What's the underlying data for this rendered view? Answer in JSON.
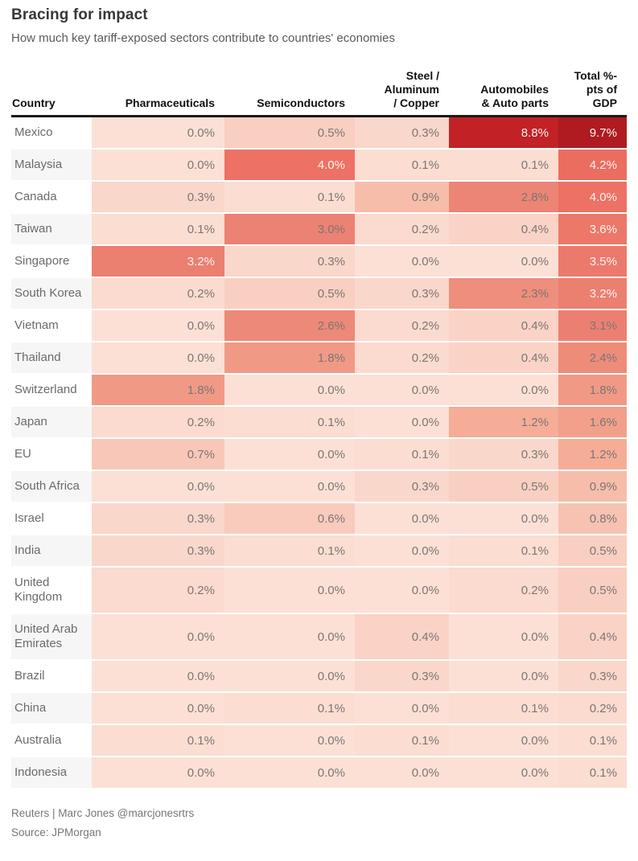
{
  "title": "Bracing for impact",
  "subtitle": "How much key tariff-exposed sectors contribute to countries' economies",
  "chart_data": {
    "type": "heatmap",
    "columns": [
      "Country",
      "Pharmaceuticals",
      "Semiconductors",
      "Steel / Aluminum / Copper",
      "Automobiles & Auto parts",
      "Total %-pts of GDP"
    ],
    "header_lines": [
      [
        "Country"
      ],
      [
        "Pharmaceuticals"
      ],
      [
        "Semiconductors"
      ],
      [
        "Steel /",
        "Aluminum",
        "/ Copper"
      ],
      [
        "Automobiles",
        "& Auto parts"
      ],
      [
        "Total %-",
        "pts of",
        "GDP"
      ]
    ],
    "value_suffix": "%",
    "value_decimals": 1,
    "rows": [
      {
        "country": "Mexico",
        "values": [
          0.0,
          0.5,
          0.3,
          8.8,
          9.7
        ]
      },
      {
        "country": "Malaysia",
        "values": [
          0.0,
          4.0,
          0.1,
          0.1,
          4.2
        ]
      },
      {
        "country": "Canada",
        "values": [
          0.3,
          0.1,
          0.9,
          2.8,
          4.0
        ]
      },
      {
        "country": "Taiwan",
        "values": [
          0.1,
          3.0,
          0.2,
          0.4,
          3.6
        ]
      },
      {
        "country": "Singapore",
        "values": [
          3.2,
          0.3,
          0.0,
          0.0,
          3.5
        ]
      },
      {
        "country": "South Korea",
        "values": [
          0.2,
          0.5,
          0.3,
          2.3,
          3.2
        ]
      },
      {
        "country": "Vietnam",
        "values": [
          0.0,
          2.6,
          0.2,
          0.4,
          3.1
        ]
      },
      {
        "country": "Thailand",
        "values": [
          0.0,
          1.8,
          0.2,
          0.4,
          2.4
        ]
      },
      {
        "country": "Switzerland",
        "values": [
          1.8,
          0.0,
          0.0,
          0.0,
          1.8
        ]
      },
      {
        "country": "Japan",
        "values": [
          0.2,
          0.1,
          0.0,
          1.2,
          1.6
        ]
      },
      {
        "country": "EU",
        "values": [
          0.7,
          0.0,
          0.1,
          0.3,
          1.2
        ]
      },
      {
        "country": "South Africa",
        "values": [
          0.0,
          0.0,
          0.3,
          0.5,
          0.9
        ]
      },
      {
        "country": "Israel",
        "values": [
          0.3,
          0.6,
          0.0,
          0.0,
          0.8
        ]
      },
      {
        "country": "India",
        "values": [
          0.3,
          0.1,
          0.0,
          0.1,
          0.5
        ]
      },
      {
        "country": "United Kingdom",
        "values": [
          0.2,
          0.0,
          0.0,
          0.2,
          0.5
        ]
      },
      {
        "country": "United Arab Emirates",
        "values": [
          0.0,
          0.0,
          0.4,
          0.0,
          0.4
        ]
      },
      {
        "country": "Brazil",
        "values": [
          0.0,
          0.0,
          0.3,
          0.0,
          0.3
        ]
      },
      {
        "country": "China",
        "values": [
          0.0,
          0.1,
          0.0,
          0.1,
          0.2
        ]
      },
      {
        "country": "Australia",
        "values": [
          0.1,
          0.0,
          0.1,
          0.0,
          0.1
        ]
      },
      {
        "country": "Indonesia",
        "values": [
          0.0,
          0.0,
          0.0,
          0.0,
          0.1
        ]
      }
    ]
  },
  "colors": {
    "header_rule": "#1a1a1a",
    "cell_text_light_bg": "#7d7672",
    "cell_text_dark_bg": "#fdf3f0",
    "country_text": "#6b6b6b",
    "row_stripe": "#f6f6f6",
    "row_plain": "#ffffff",
    "white_text_threshold": 3.15,
    "heat_stops": [
      {
        "value": 0.0,
        "color": "#fce0d6"
      },
      {
        "value": 0.3,
        "color": "#fad7cb"
      },
      {
        "value": 0.7,
        "color": "#f8c7b7"
      },
      {
        "value": 1.2,
        "color": "#f5ad98"
      },
      {
        "value": 1.8,
        "color": "#f09a86"
      },
      {
        "value": 2.4,
        "color": "#ee8c7a"
      },
      {
        "value": 3.0,
        "color": "#eb8273"
      },
      {
        "value": 4.0,
        "color": "#ed7164"
      },
      {
        "value": 6.0,
        "color": "#db4940"
      },
      {
        "value": 8.8,
        "color": "#c22126"
      },
      {
        "value": 9.7,
        "color": "#af1b21"
      }
    ]
  },
  "footer": {
    "credit": "Reuters | Marc Jones @marcjonesrtrs",
    "source": "Source: JPMorgan"
  }
}
